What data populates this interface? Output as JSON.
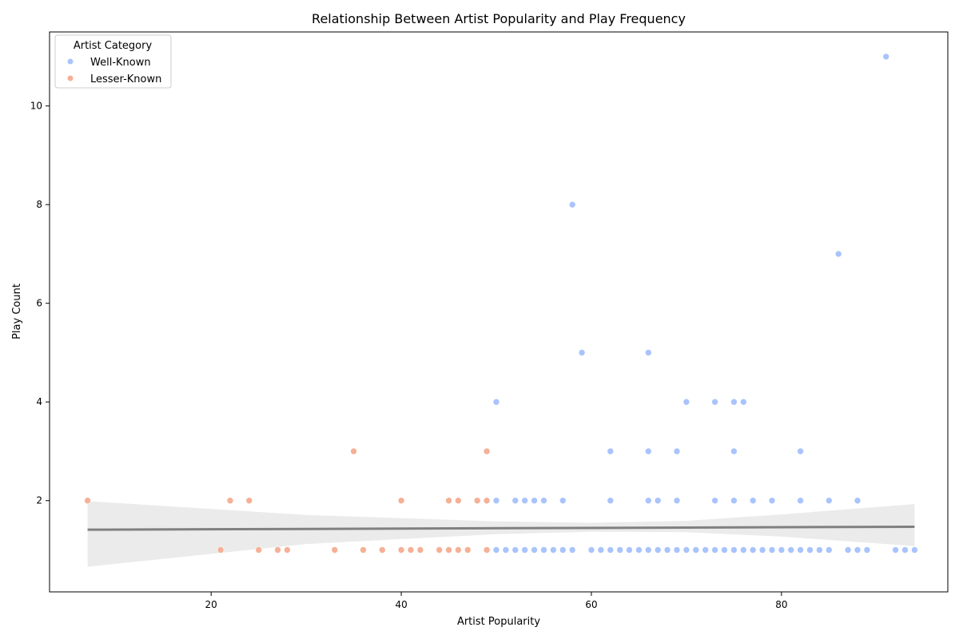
{
  "chart_data": {
    "type": "scatter",
    "title": "Relationship Between Artist Popularity and Play Frequency",
    "xlabel": "Artist Popularity",
    "ylabel": "Play Count",
    "xlim": [
      3,
      97.5
    ],
    "ylim": [
      0.15,
      11.5
    ],
    "xticks": [
      20,
      40,
      60,
      80
    ],
    "yticks": [
      2,
      4,
      6,
      8,
      10
    ],
    "grid": false,
    "legend": {
      "title": "Artist Category",
      "placement": "top-left"
    },
    "series": [
      {
        "name": "Well-Known",
        "color": "#a9c4fc",
        "points": [
          [
            91,
            11
          ],
          [
            58,
            8
          ],
          [
            86,
            7
          ],
          [
            59,
            5
          ],
          [
            66,
            5
          ],
          [
            50,
            4
          ],
          [
            70,
            4
          ],
          [
            73,
            4
          ],
          [
            75,
            4
          ],
          [
            76,
            4
          ],
          [
            62,
            3
          ],
          [
            66,
            3
          ],
          [
            69,
            3
          ],
          [
            75,
            3
          ],
          [
            82,
            3
          ],
          [
            50,
            2
          ],
          [
            52,
            2
          ],
          [
            53,
            2
          ],
          [
            54,
            2
          ],
          [
            55,
            2
          ],
          [
            57,
            2
          ],
          [
            62,
            2
          ],
          [
            66,
            2
          ],
          [
            67,
            2
          ],
          [
            69,
            2
          ],
          [
            73,
            2
          ],
          [
            75,
            2
          ],
          [
            77,
            2
          ],
          [
            79,
            2
          ],
          [
            82,
            2
          ],
          [
            85,
            2
          ],
          [
            88,
            2
          ],
          [
            50,
            1
          ],
          [
            51,
            1
          ],
          [
            52,
            1
          ],
          [
            53,
            1
          ],
          [
            54,
            1
          ],
          [
            55,
            1
          ],
          [
            56,
            1
          ],
          [
            57,
            1
          ],
          [
            58,
            1
          ],
          [
            60,
            1
          ],
          [
            61,
            1
          ],
          [
            62,
            1
          ],
          [
            63,
            1
          ],
          [
            64,
            1
          ],
          [
            65,
            1
          ],
          [
            66,
            1
          ],
          [
            67,
            1
          ],
          [
            68,
            1
          ],
          [
            69,
            1
          ],
          [
            70,
            1
          ],
          [
            71,
            1
          ],
          [
            72,
            1
          ],
          [
            73,
            1
          ],
          [
            74,
            1
          ],
          [
            75,
            1
          ],
          [
            76,
            1
          ],
          [
            77,
            1
          ],
          [
            78,
            1
          ],
          [
            79,
            1
          ],
          [
            80,
            1
          ],
          [
            81,
            1
          ],
          [
            82,
            1
          ],
          [
            83,
            1
          ],
          [
            84,
            1
          ],
          [
            85,
            1
          ],
          [
            87,
            1
          ],
          [
            88,
            1
          ],
          [
            89,
            1
          ],
          [
            92,
            1
          ],
          [
            93,
            1
          ],
          [
            94,
            1
          ]
        ]
      },
      {
        "name": "Lesser-Known",
        "color": "#f5b096",
        "points": [
          [
            35,
            3
          ],
          [
            49,
            3
          ],
          [
            7,
            2
          ],
          [
            22,
            2
          ],
          [
            24,
            2
          ],
          [
            40,
            2
          ],
          [
            45,
            2
          ],
          [
            46,
            2
          ],
          [
            48,
            2
          ],
          [
            49,
            2
          ],
          [
            21,
            1
          ],
          [
            25,
            1
          ],
          [
            27,
            1
          ],
          [
            28,
            1
          ],
          [
            33,
            1
          ],
          [
            36,
            1
          ],
          [
            38,
            1
          ],
          [
            40,
            1
          ],
          [
            41,
            1
          ],
          [
            42,
            1
          ],
          [
            44,
            1
          ],
          [
            45,
            1
          ],
          [
            46,
            1
          ],
          [
            47,
            1
          ],
          [
            49,
            1
          ]
        ]
      }
    ],
    "regression": {
      "color": "#808080",
      "band_color": "#ebebeb",
      "line": [
        [
          7,
          1.41
        ],
        [
          94,
          1.47
        ]
      ],
      "band": [
        [
          7,
          0.66,
          1.99
        ],
        [
          30,
          1.12,
          1.71
        ],
        [
          50,
          1.32,
          1.58
        ],
        [
          60,
          1.37,
          1.55
        ],
        [
          70,
          1.36,
          1.59
        ],
        [
          80,
          1.27,
          1.72
        ],
        [
          94,
          1.08,
          1.93
        ]
      ]
    }
  }
}
